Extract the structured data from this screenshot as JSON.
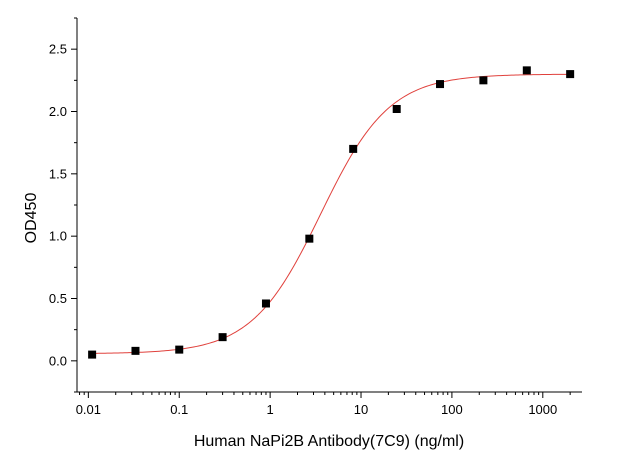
{
  "chart_data": {
    "type": "scatter",
    "title": "",
    "xlabel": "Human NaPi2B Antibody(7C9) (ng/ml)",
    "ylabel": "OD450",
    "x_scale": "log",
    "xlim": [
      0.0075,
      2700
    ],
    "ylim": [
      -0.25,
      2.75
    ],
    "x_ticks": [
      0.01,
      0.1,
      1,
      10,
      100,
      1000
    ],
    "x_tick_labels": [
      "0.01",
      "0.1",
      "1",
      "10",
      "100",
      "1000"
    ],
    "y_ticks": [
      0.0,
      0.5,
      1.0,
      1.5,
      2.0,
      2.5
    ],
    "y_tick_labels": [
      "0.0",
      "0.5",
      "1.0",
      "1.5",
      "2.0",
      "2.5"
    ],
    "grid": false,
    "legend": "none",
    "series": [
      {
        "marker": "square",
        "color": "#000000",
        "x": [
          0.011,
          0.033,
          0.1,
          0.3,
          0.9,
          2.7,
          8.2,
          24.7,
          74,
          222,
          667,
          2000
        ],
        "y": [
          0.05,
          0.08,
          0.09,
          0.19,
          0.46,
          0.98,
          1.7,
          2.02,
          2.22,
          2.25,
          2.33,
          2.3
        ]
      }
    ],
    "fit_curve": {
      "model": "4PL",
      "color": "#e0413c",
      "bottom": 0.057,
      "top": 2.3,
      "ec50": 3.6,
      "hill": 1.15
    }
  }
}
